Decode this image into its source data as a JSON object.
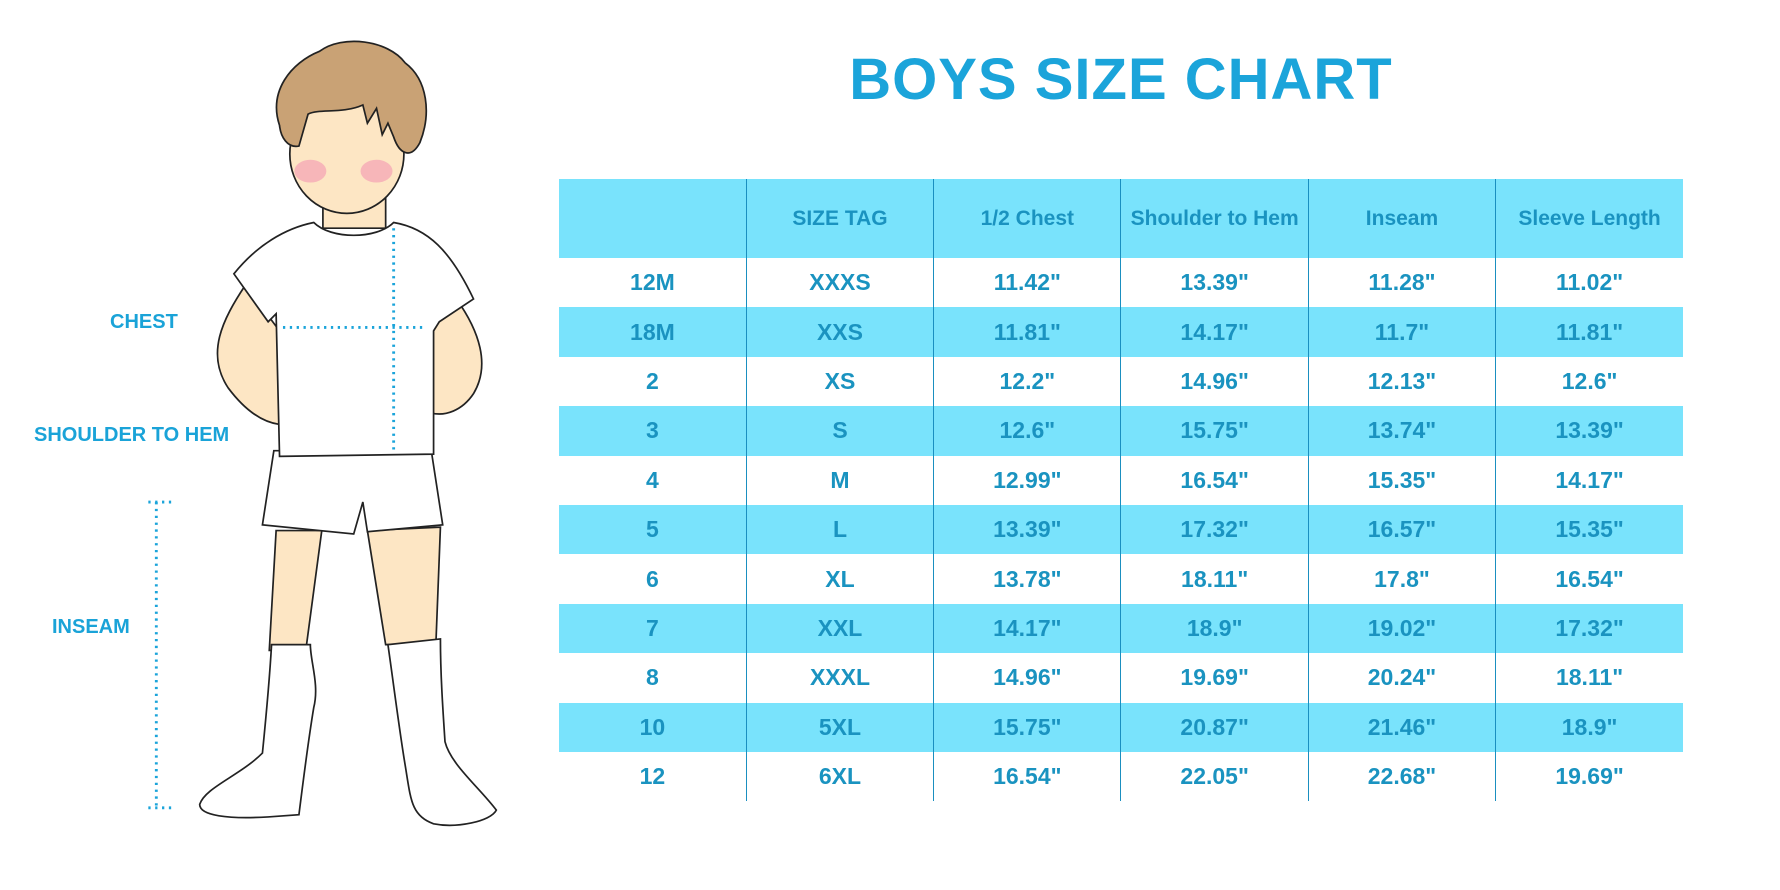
{
  "title": "BOYS SIZE CHART",
  "colors": {
    "accent": "#1ba4da",
    "header_bg": "#79e3fc",
    "text": "#1a93c0"
  },
  "figure_labels": {
    "chest": "CHEST",
    "shoulder_to_hem": "SHOULDER TO HEM",
    "inseam": "INSEAM"
  },
  "table": {
    "headers": [
      "",
      "SIZE TAG",
      "1/2 Chest",
      "Shoulder to Hem",
      "Inseam",
      "Sleeve Length"
    ],
    "rows": [
      [
        "12M",
        "XXXS",
        "11.42\"",
        "13.39\"",
        "11.28\"",
        "11.02\""
      ],
      [
        "18M",
        "XXS",
        "11.81\"",
        "14.17\"",
        "11.7\"",
        "11.81\""
      ],
      [
        "2",
        "XS",
        "12.2\"",
        "14.96\"",
        "12.13\"",
        "12.6\""
      ],
      [
        "3",
        "S",
        "12.6\"",
        "15.75\"",
        "13.74\"",
        "13.39\""
      ],
      [
        "4",
        "M",
        "12.99\"",
        "16.54\"",
        "15.35\"",
        "14.17\""
      ],
      [
        "5",
        "L",
        "13.39\"",
        "17.32\"",
        "16.57\"",
        "15.35\""
      ],
      [
        "6",
        "XL",
        "13.78\"",
        "18.11\"",
        "17.8\"",
        "16.54\""
      ],
      [
        "7",
        "XXL",
        "14.17\"",
        "18.9\"",
        "19.02\"",
        "17.32\""
      ],
      [
        "8",
        "XXXL",
        "14.96\"",
        "19.69\"",
        "20.24\"",
        "18.11\""
      ],
      [
        "10",
        "5XL",
        "15.75\"",
        "20.87\"",
        "21.46\"",
        "18.9\""
      ],
      [
        "12",
        "6XL",
        "16.54\"",
        "22.05\"",
        "22.68\"",
        "19.69\""
      ]
    ]
  }
}
